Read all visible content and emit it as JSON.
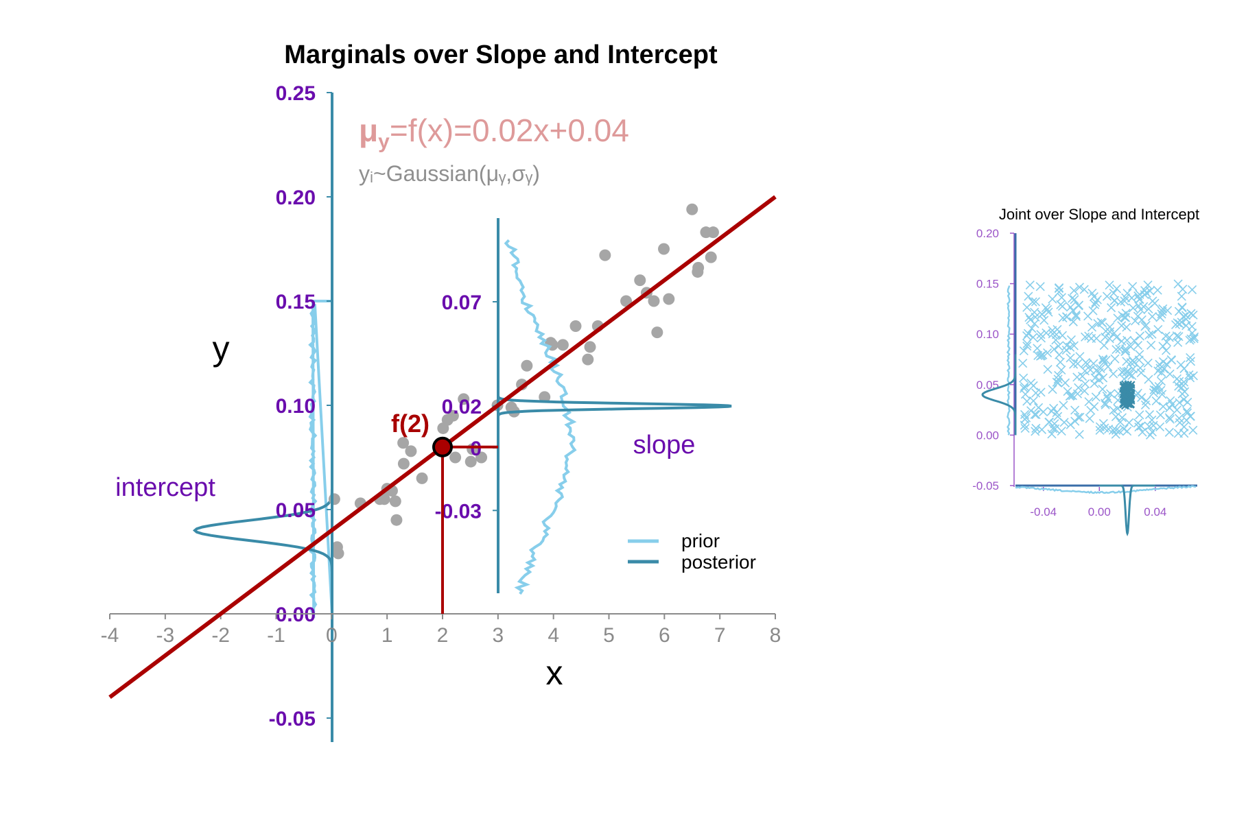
{
  "chart_data": [
    {
      "type": "scatter",
      "title": "Marginals over Slope and Intercept",
      "xlabel": "x",
      "ylabel": "y",
      "xlim": [
        -4,
        8
      ],
      "ylim": [
        -0.06,
        0.25
      ],
      "x_ticks": [
        "-4",
        "-3",
        "-2",
        "-1",
        "0",
        "1",
        "2",
        "3",
        "4",
        "5",
        "6",
        "7",
        "8"
      ],
      "y_ticks": [
        "-0.05",
        "0.00",
        "0.05",
        "0.10",
        "0.15",
        "0.20",
        "0.25"
      ],
      "equation_main": "μ",
      "equation_sub": "y",
      "equation_rest": "=f(x)=0.02x+0.04",
      "equation2": "yᵢ~Gaussian(μᵧ,σᵧ)",
      "regression_line": {
        "slope": 0.02,
        "intercept": 0.04,
        "color": "#aa0000"
      },
      "highlight": {
        "label": "f(2)",
        "x": 2,
        "y": 0.08
      },
      "intercept_label": "intercept",
      "slope_label": "slope",
      "slope_axis_ticks": [
        "0.07",
        "0.02",
        "0",
        "-0.03"
      ],
      "legend": [
        {
          "label": "prior",
          "color": "#87ceeb"
        },
        {
          "label": "posterior",
          "color": "#3a8ba8"
        }
      ],
      "points": {
        "x": [
          0.05,
          0.1,
          0.12,
          0.52,
          0.87,
          0.95,
          1.0,
          1.09,
          1.15,
          1.17,
          1.29,
          1.3,
          1.43,
          1.63,
          1.96,
          1.97,
          2.01,
          2.09,
          2.19,
          2.23,
          2.38,
          2.51,
          2.54,
          2.7,
          2.99,
          3.24,
          3.29,
          3.43,
          3.52,
          3.84,
          3.95,
          3.98,
          4.17,
          4.4,
          4.62,
          4.66,
          4.8,
          4.93,
          5.31,
          5.56,
          5.68,
          5.81,
          5.87,
          5.99,
          6.08,
          6.5,
          6.6,
          6.61,
          6.75,
          6.84,
          6.88
        ],
        "y": [
          0.055,
          0.032,
          0.029,
          0.053,
          0.055,
          0.055,
          0.06,
          0.059,
          0.054,
          0.045,
          0.082,
          0.072,
          0.078,
          0.065,
          0.08,
          0.081,
          0.089,
          0.093,
          0.095,
          0.075,
          0.103,
          0.073,
          0.079,
          0.075,
          0.1,
          0.099,
          0.097,
          0.11,
          0.119,
          0.104,
          0.13,
          0.129,
          0.129,
          0.138,
          0.122,
          0.128,
          0.138,
          0.172,
          0.15,
          0.16,
          0.154,
          0.15,
          0.135,
          0.175,
          0.151,
          0.194,
          0.164,
          0.166,
          0.183,
          0.171,
          0.183
        ]
      }
    },
    {
      "type": "scatter",
      "title": "Joint over Slope and Intercept",
      "xlim": [
        -0.06,
        0.07
      ],
      "ylim": [
        -0.05,
        0.2
      ],
      "x_ticks": [
        "-0.04",
        "0.00",
        "0.04"
      ],
      "y_ticks": [
        "-0.05",
        "0.00",
        "0.05",
        "0.10",
        "0.15",
        "0.20"
      ],
      "prior_color": "#87ceeb",
      "posterior_color": "#3a8ba8",
      "prior_sample_count": 400,
      "posterior_center": {
        "slope": 0.02,
        "intercept": 0.04
      }
    }
  ]
}
